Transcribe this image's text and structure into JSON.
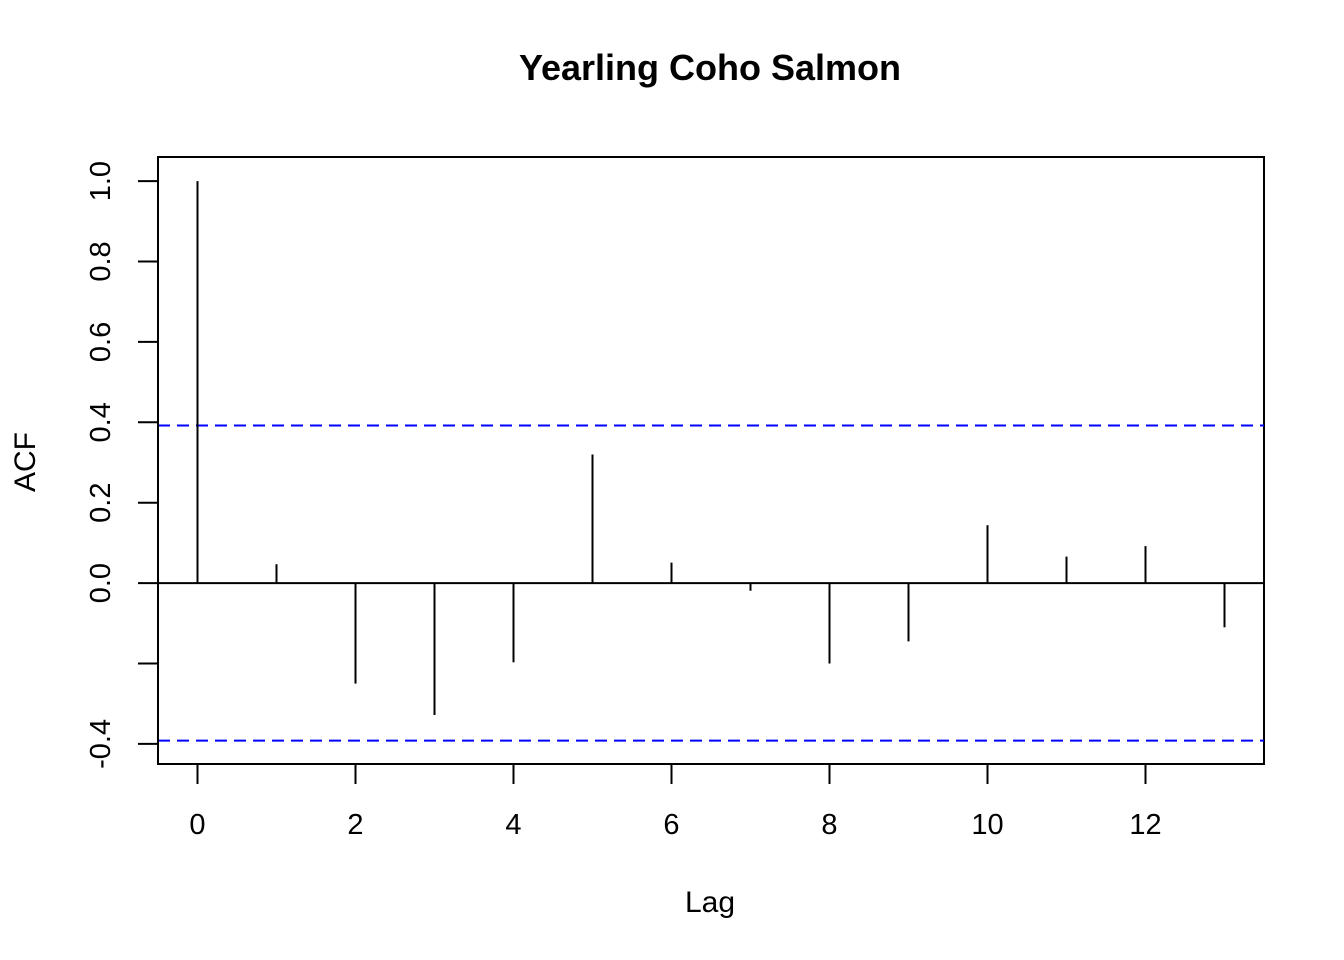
{
  "chart_data": {
    "type": "bar",
    "title": "Yearling Coho Salmon",
    "xlabel": "Lag",
    "ylabel": "ACF",
    "xlim": [
      -0.5,
      13.5
    ],
    "ylim": [
      -0.45,
      1.06
    ],
    "x_ticks": [
      0,
      2,
      4,
      6,
      8,
      10,
      12
    ],
    "x_tick_labels": [
      "0",
      "2",
      "4",
      "6",
      "8",
      "10",
      "12"
    ],
    "y_ticks": [
      -0.4,
      0.0,
      0.2,
      0.4,
      0.6,
      0.8,
      1.0
    ],
    "y_tick_labels": [
      "-0.4",
      "0.0",
      "0.2",
      "0.4",
      "0.6",
      "0.8",
      "1.0"
    ],
    "y_minor_ticks": [
      -0.2
    ],
    "series": [
      {
        "lags": [
          0,
          1,
          2,
          3,
          4,
          5,
          6,
          7,
          8,
          9,
          10,
          11,
          12,
          13
        ],
        "values": [
          1.0,
          0.047,
          -0.25,
          -0.328,
          -0.197,
          0.32,
          0.051,
          -0.019,
          -0.2,
          -0.145,
          0.144,
          0.066,
          0.092,
          -0.11
        ]
      }
    ],
    "confidence_bounds": [
      0.392,
      -0.392
    ],
    "colors": {
      "bars": "#000000",
      "bounds": "#0000ff",
      "zero_line": "#000000"
    },
    "grid": false
  }
}
